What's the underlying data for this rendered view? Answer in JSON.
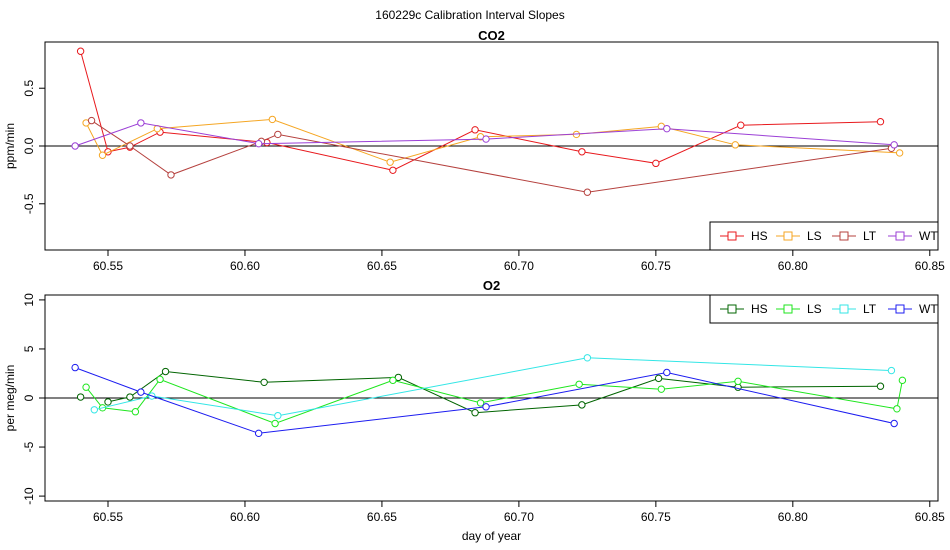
{
  "figure_title": "160229c   Calibration Interval Slopes",
  "chart_data": [
    {
      "type": "line",
      "title": "CO2",
      "ylabel": "ppm/min",
      "xlabel": "",
      "xlim": [
        60.527,
        60.853
      ],
      "ylim": [
        -0.9,
        0.9
      ],
      "xticks": [
        60.55,
        60.6,
        60.65,
        60.7,
        60.75,
        60.8,
        60.85
      ],
      "xtick_labels": [
        "60.55",
        "60.60",
        "60.65",
        "60.70",
        "60.75",
        "60.80",
        "60.85"
      ],
      "yticks": [
        -0.5,
        0.0,
        0.5
      ],
      "ytick_labels": [
        "-0.5",
        "0.0",
        "0.5"
      ],
      "hline": 0,
      "legend_position": "bottom-right",
      "series": [
        {
          "name": "HS",
          "color": "#e8191d",
          "x": [
            60.54,
            60.55,
            60.558,
            60.569,
            60.608,
            60.654,
            60.684,
            60.723,
            60.75,
            60.781,
            60.832
          ],
          "y": [
            0.82,
            -0.05,
            -0.01,
            0.12,
            0.03,
            -0.21,
            0.14,
            -0.05,
            -0.15,
            0.18,
            0.21
          ]
        },
        {
          "name": "LS",
          "color": "#f5a623",
          "x": [
            60.542,
            60.548,
            60.568,
            60.61,
            60.653,
            60.686,
            60.721,
            60.752,
            60.779,
            60.839
          ],
          "y": [
            0.2,
            -0.08,
            0.15,
            0.23,
            -0.14,
            0.08,
            0.1,
            0.17,
            0.01,
            -0.06
          ]
        },
        {
          "name": "LT",
          "color": "#b5413e",
          "x": [
            60.544,
            60.558,
            60.573,
            60.606,
            60.612,
            60.725,
            60.836
          ],
          "y": [
            0.22,
            0.0,
            -0.25,
            0.04,
            0.1,
            -0.4,
            -0.02
          ]
        },
        {
          "name": "WT",
          "color": "#9b3fd6",
          "x": [
            60.538,
            60.562,
            60.605,
            60.688,
            60.754,
            60.837
          ],
          "y": [
            0.0,
            0.2,
            0.02,
            0.06,
            0.15,
            0.01
          ]
        }
      ]
    },
    {
      "type": "line",
      "title": "O2",
      "ylabel": "per meg/min",
      "xlabel": "day of year",
      "xlim": [
        60.527,
        60.853
      ],
      "ylim": [
        -10.5,
        10.5
      ],
      "xticks": [
        60.55,
        60.6,
        60.65,
        60.7,
        60.75,
        60.8,
        60.85
      ],
      "xtick_labels": [
        "60.55",
        "60.60",
        "60.65",
        "60.70",
        "60.75",
        "60.80",
        "60.85"
      ],
      "yticks": [
        -10,
        -5,
        0,
        5,
        10
      ],
      "ytick_labels": [
        "-10",
        "-5",
        "0",
        "5",
        "10"
      ],
      "hline": 0,
      "legend_position": "top-right",
      "series": [
        {
          "name": "HS",
          "color": "#006400",
          "x": [
            60.54,
            60.55,
            60.558,
            60.571,
            60.607,
            60.656,
            60.684,
            60.723,
            60.751,
            60.78,
            60.832
          ],
          "y": [
            0.1,
            -0.4,
            0.1,
            2.7,
            1.6,
            2.1,
            -1.5,
            -0.7,
            2.0,
            1.1,
            1.2
          ],
          "line_from_index": 1
        },
        {
          "name": "LS",
          "color": "#1ee61e",
          "x": [
            60.542,
            60.548,
            60.56,
            60.569,
            60.611,
            60.654,
            60.686,
            60.722,
            60.752,
            60.78,
            60.838,
            60.84
          ],
          "y": [
            1.1,
            -1.0,
            -1.4,
            1.9,
            -2.6,
            1.8,
            -0.5,
            1.4,
            0.9,
            1.7,
            -1.1,
            1.8
          ]
        },
        {
          "name": "LT",
          "color": "#33e6e6",
          "x": [
            60.545,
            60.566,
            60.612,
            60.725,
            60.836
          ],
          "y": [
            -1.2,
            0.2,
            -1.8,
            4.1,
            2.8
          ]
        },
        {
          "name": "WT",
          "color": "#1c1cf0",
          "x": [
            60.538,
            60.562,
            60.605,
            60.688,
            60.754,
            60.837
          ],
          "y": [
            3.1,
            0.6,
            -3.6,
            -0.9,
            2.6,
            -2.6
          ]
        }
      ]
    }
  ]
}
